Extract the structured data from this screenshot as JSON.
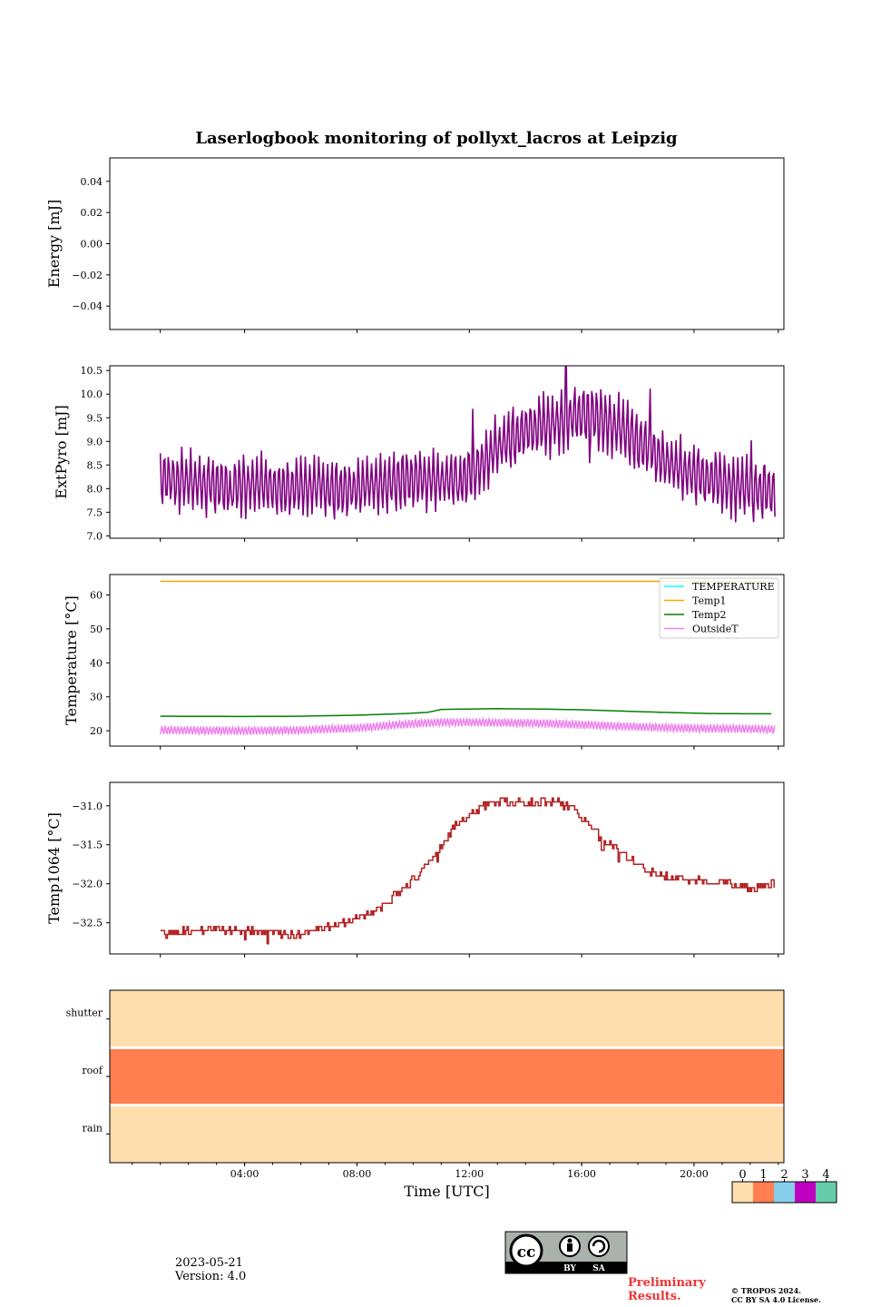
{
  "colors": {
    "energy": "#800080",
    "extpyro": "#800080",
    "temperature": "#00ffff",
    "temp1": "#ffa500",
    "temp2": "#008000",
    "outsideT": "#ee82ee",
    "temp1064": "#b22222",
    "status": [
      "#ffdead",
      "#ff7f50",
      "#87ceeb",
      "#c000c0",
      "#66cdaa"
    ]
  },
  "chart_data": [
    {
      "type": "line",
      "title": "Laserlogbook monitoring of pollyxt_lacros at Leipzig",
      "ylabel": "Energy [mJ]",
      "ylim": [
        -0.055,
        0.055
      ],
      "yticks": [
        "0.04",
        "0.02",
        "0.00",
        "−0.04"
      ],
      "yticks_all": [
        "0.04",
        "0.02",
        "0.00",
        "−0.02",
        "−0.04"
      ],
      "series": []
    },
    {
      "type": "line",
      "ylabel": "ExtPyro [mJ]",
      "ylim": [
        6.95,
        10.6
      ],
      "yticks": [
        "10.5",
        "10.0",
        "9.5",
        "9.0",
        "8.5",
        "8.0",
        "7.5",
        "7.0"
      ],
      "series": [
        {
          "x": [
            1.0,
            1.5,
            2.0,
            2.5,
            3.0,
            3.5,
            4.0,
            4.5,
            5.0,
            5.5,
            6.0,
            6.5,
            7.0,
            7.5,
            8.0,
            8.5,
            9.0,
            9.5,
            10.0,
            10.5,
            11.0,
            11.5,
            12.0,
            12.5,
            13.0,
            13.5,
            14.0,
            14.5,
            15.0,
            15.5,
            16.0,
            16.5,
            17.0,
            17.5,
            18.0,
            18.5,
            19.0,
            19.5,
            20.0,
            20.5,
            21.0,
            21.5,
            22.0,
            22.5,
            22.9
          ],
          "center": [
            8.2,
            8.2,
            8.15,
            8.1,
            8.1,
            8.05,
            8.1,
            8.05,
            8.05,
            8.0,
            8.0,
            8.0,
            8.0,
            8.0,
            8.0,
            8.05,
            8.1,
            8.15,
            8.15,
            8.2,
            8.15,
            8.2,
            8.25,
            8.6,
            8.85,
            9.05,
            9.2,
            9.3,
            9.4,
            9.5,
            9.5,
            9.5,
            9.4,
            9.2,
            9.0,
            8.8,
            8.55,
            8.4,
            8.3,
            8.2,
            8.1,
            8.05,
            8.0,
            7.95,
            7.9
          ],
          "amplitude": 0.65
        }
      ]
    },
    {
      "type": "line",
      "ylabel": "Temperature [°C]",
      "ylim": [
        15.5,
        66.0
      ],
      "yticks": [
        "60",
        "50",
        "40",
        "30",
        "20"
      ],
      "legend": "top-right",
      "series": [
        {
          "name": "TEMPERATURE",
          "x": [],
          "y": []
        },
        {
          "name": "Temp1",
          "x": [
            1.0,
            22.9
          ],
          "y": [
            64.0,
            64.0
          ]
        },
        {
          "name": "Temp2",
          "x": [
            1.0,
            4.0,
            6.0,
            8.0,
            9.5,
            10.5,
            11.0,
            12.0,
            13.0,
            14.5,
            16.0,
            17.5,
            19.0,
            20.5,
            22.0,
            22.9
          ],
          "y": [
            24.3,
            24.2,
            24.3,
            24.6,
            25.0,
            25.4,
            26.3,
            26.4,
            26.5,
            26.4,
            26.2,
            25.8,
            25.4,
            25.1,
            25.0,
            25.0
          ]
        },
        {
          "name": "OutsideT",
          "x": [
            1.0,
            4.0,
            6.0,
            8.0,
            9.5,
            10.5,
            11.0,
            12.0,
            13.0,
            14.5,
            16.0,
            17.5,
            19.0,
            20.5,
            22.0,
            22.9
          ],
          "y": [
            20.2,
            20.0,
            20.2,
            20.8,
            21.8,
            22.3,
            22.5,
            22.5,
            22.4,
            22.2,
            21.8,
            21.3,
            20.9,
            20.7,
            20.6,
            20.4
          ],
          "amplitude": 1.2
        }
      ]
    },
    {
      "type": "line",
      "ylabel": "Temp1064 [°C]",
      "ylim": [
        -32.9,
        -30.7
      ],
      "yticks": [
        "−31.0",
        "−31.5",
        "−32.0",
        "−32.5"
      ],
      "series": [
        {
          "x": [
            1.0,
            2.0,
            3.0,
            4.0,
            5.0,
            6.0,
            7.0,
            7.5,
            8.0,
            8.5,
            9.0,
            9.5,
            10.0,
            10.5,
            11.0,
            11.5,
            12.0,
            12.5,
            13.0,
            13.5,
            14.0,
            14.5,
            15.0,
            15.5,
            16.0,
            16.5,
            17.0,
            17.5,
            18.0,
            18.5,
            19.0,
            19.5,
            20.0,
            21.0,
            22.0,
            22.9
          ],
          "y": [
            -32.65,
            -32.6,
            -32.6,
            -32.6,
            -32.65,
            -32.65,
            -32.55,
            -32.5,
            -32.45,
            -32.35,
            -32.25,
            -32.1,
            -31.95,
            -31.75,
            -31.5,
            -31.25,
            -31.1,
            -31.0,
            -30.95,
            -30.95,
            -30.95,
            -30.95,
            -30.95,
            -31.0,
            -31.15,
            -31.35,
            -31.5,
            -31.65,
            -31.75,
            -31.85,
            -31.9,
            -31.95,
            -31.95,
            -32.0,
            -32.05,
            -32.0
          ],
          "jitter": 0.05
        }
      ]
    },
    {
      "type": "heatmap",
      "categories": [
        "shutter",
        "roof",
        "rain"
      ],
      "values": [
        0,
        1,
        0
      ],
      "xlabel": "Time [UTC]",
      "xticks": [
        "04:00",
        "08:00",
        "12:00",
        "16:00",
        "20:00"
      ],
      "xlim": [
        0,
        24
      ],
      "colorbar": [
        "0",
        "1",
        "2",
        "3",
        "4"
      ]
    }
  ],
  "footer": {
    "date": "2023-05-21",
    "version": "Version: 4.0",
    "license_badge": [
      "BY",
      "SA"
    ],
    "preliminary": "Preliminary Results.",
    "copyright_1": "© TROPOS 2024.",
    "copyright_2": "CC BY SA 4.0 License."
  }
}
